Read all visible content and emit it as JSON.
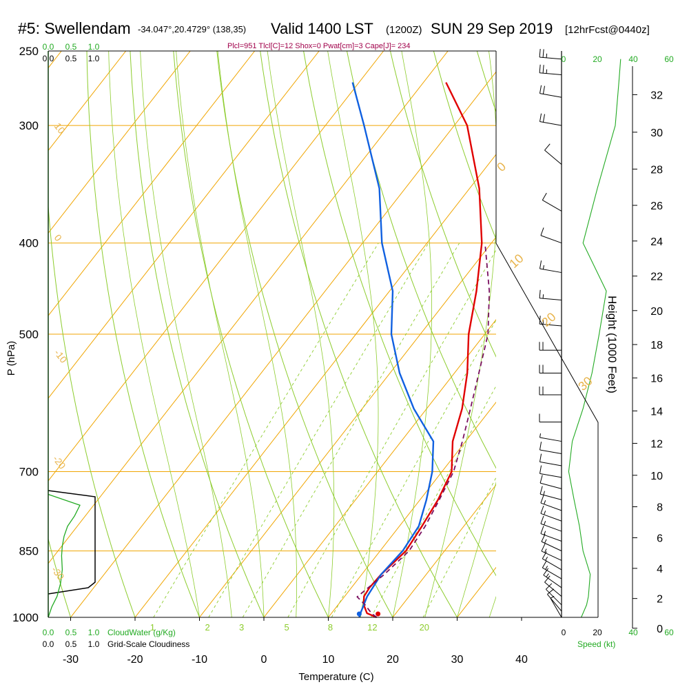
{
  "header": {
    "station": "#5: Swellendam",
    "coords": "-34.047°,20.4729° (138,35)",
    "valid": "Valid 1400 LST",
    "zulu": "(1200Z)",
    "date": "SUN 29 Sep 2019",
    "fcst": "[12hrFcst@0440z]",
    "params": "Plcl=951 Tlcl[C]=12 Shox=0 Pwat[cm]=3 Cape[J]= 234"
  },
  "colors": {
    "isotherm": "#f0a500",
    "dry_adiabat": "#8ccc2c",
    "moist_adiabat": "#8ccc2c",
    "mixing_ratio": "#8ccc2c",
    "temperature": "#e00000",
    "dewpoint": "#1060e0",
    "parcel": "#7a1060",
    "cloud": "#22aa22",
    "params_text": "#a0004a"
  },
  "chart_data": {
    "type": "line",
    "title": "Skew-T log-P sounding",
    "xlabel": "Temperature (C)",
    "ylabel": "P (hPa)",
    "xlim": [
      -33,
      36
    ],
    "ylim_pressure": [
      1000,
      250
    ],
    "x_ticks": [
      "-30",
      "-20",
      "-10",
      "0",
      "10",
      "20",
      "30",
      "40"
    ],
    "p_ticks": [
      "250",
      "300",
      "400",
      "500",
      "700",
      "850",
      "1000"
    ],
    "height_axis_label": "Height (1000 Feet)",
    "height_ticks": [
      "0",
      "2",
      "4",
      "6",
      "8",
      "10",
      "12",
      "14",
      "16",
      "18",
      "20",
      "22",
      "24",
      "26",
      "28",
      "30",
      "32"
    ],
    "mixing_ratio_labels": [
      "1",
      "2",
      "3",
      "5",
      "8",
      "12",
      "20"
    ],
    "isotherm_labels": [
      "10",
      "0",
      "-10",
      "-20",
      "-30"
    ],
    "adiabat_labels": [
      "0",
      "10",
      "20",
      "30"
    ],
    "series": [
      {
        "name": "temperature",
        "pressure": [
          1000,
          990,
          970,
          950,
          930,
          900,
          850,
          800,
          750,
          700,
          650,
          600,
          550,
          500,
          450,
          400,
          350,
          300,
          270
        ],
        "values": [
          17.5,
          15.5,
          14.0,
          13.0,
          12.8,
          13.0,
          14.0,
          13.5,
          12.8,
          11.5,
          8.0,
          5.5,
          2.0,
          -2.5,
          -6.5,
          -11.5,
          -18.5,
          -28.0,
          -36.5
        ]
      },
      {
        "name": "dewpoint",
        "pressure": [
          1000,
          990,
          950,
          900,
          850,
          800,
          750,
          700,
          650,
          600,
          550,
          500,
          450,
          400,
          350,
          300,
          270
        ],
        "values": [
          14.8,
          14.5,
          13.5,
          13.0,
          13.5,
          13.0,
          11.0,
          8.5,
          5.0,
          -2.0,
          -8.5,
          -14.5,
          -19.5,
          -27.0,
          -34.0,
          -44.0,
          -51.0
        ]
      },
      {
        "name": "parcel",
        "pressure": [
          1000,
          990,
          970,
          951,
          900,
          850,
          800,
          750,
          700,
          650,
          600,
          550,
          500,
          450,
          400
        ],
        "values": [
          17.5,
          16.2,
          14.2,
          12.0,
          13.5,
          14.5,
          14.0,
          13.0,
          11.8,
          9.5,
          6.8,
          3.8,
          0.5,
          -4.5,
          -11.0
        ]
      }
    ],
    "winds": {
      "pressure": [
        1000,
        985,
        970,
        950,
        930,
        910,
        890,
        870,
        850,
        830,
        810,
        790,
        770,
        750,
        730,
        710,
        690,
        670,
        650,
        620,
        580,
        550,
        520,
        490,
        460,
        430,
        400,
        370,
        330,
        300,
        280,
        265,
        255
      ],
      "speed_kt": [
        8,
        10,
        12,
        14,
        15,
        16,
        16,
        17,
        17,
        18,
        18,
        17,
        16,
        15,
        14,
        13,
        12,
        10,
        8,
        12,
        20,
        22,
        20,
        18,
        16,
        15,
        14,
        12,
        10,
        20,
        22,
        25,
        28
      ],
      "direction_deg": [
        330,
        320,
        315,
        310,
        305,
        300,
        300,
        295,
        295,
        290,
        290,
        290,
        290,
        285,
        285,
        280,
        280,
        280,
        280,
        270,
        270,
        270,
        270,
        275,
        275,
        280,
        290,
        300,
        310,
        280,
        280,
        275,
        275
      ]
    },
    "wind_speed_profile": {
      "pressure": [
        1000,
        990,
        970,
        950,
        900,
        850,
        800,
        750,
        700,
        650,
        600,
        550,
        500,
        450,
        400,
        350,
        300,
        270,
        255
      ],
      "speed_kt": [
        11,
        12,
        14,
        15,
        16,
        12,
        10,
        7,
        4,
        6,
        12,
        17,
        21,
        25,
        12,
        20,
        30,
        32,
        33
      ]
    },
    "cloud_water": {
      "pressure": [
        1000,
        975,
        950,
        920,
        890,
        860,
        840,
        820,
        800,
        780,
        760,
        740
      ],
      "values": [
        0.0,
        0.1,
        0.25,
        0.35,
        0.4,
        0.38,
        0.4,
        0.45,
        0.55,
        0.75,
        0.9,
        0.0
      ]
    },
    "cloudiness": {
      "pressure": [
        1000,
        950,
        945,
        760,
        740
      ],
      "values": [
        0.0,
        0.0,
        1.0,
        1.0,
        0.0
      ]
    },
    "cloud_axis_labels": [
      "0.0",
      "0.5",
      "1.0"
    ],
    "cloud_water_label": "CloudWater (g/Kg)",
    "cloudiness_label": "Grid-Scale Cloudiness",
    "speed_ticks": [
      "0",
      "20",
      "40",
      "60"
    ],
    "speed_label": "Speed (kt)"
  }
}
